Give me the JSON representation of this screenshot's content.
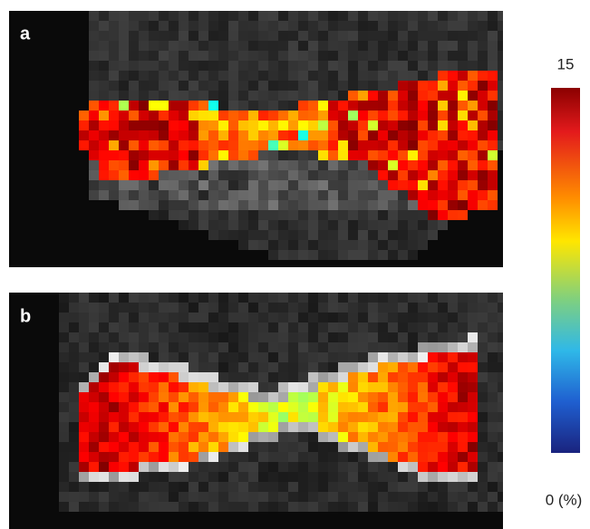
{
  "panels": [
    {
      "label": "a"
    },
    {
      "label": "b"
    }
  ],
  "colorbar": {
    "max_label": "15",
    "min_label": "0 (%)"
  }
}
